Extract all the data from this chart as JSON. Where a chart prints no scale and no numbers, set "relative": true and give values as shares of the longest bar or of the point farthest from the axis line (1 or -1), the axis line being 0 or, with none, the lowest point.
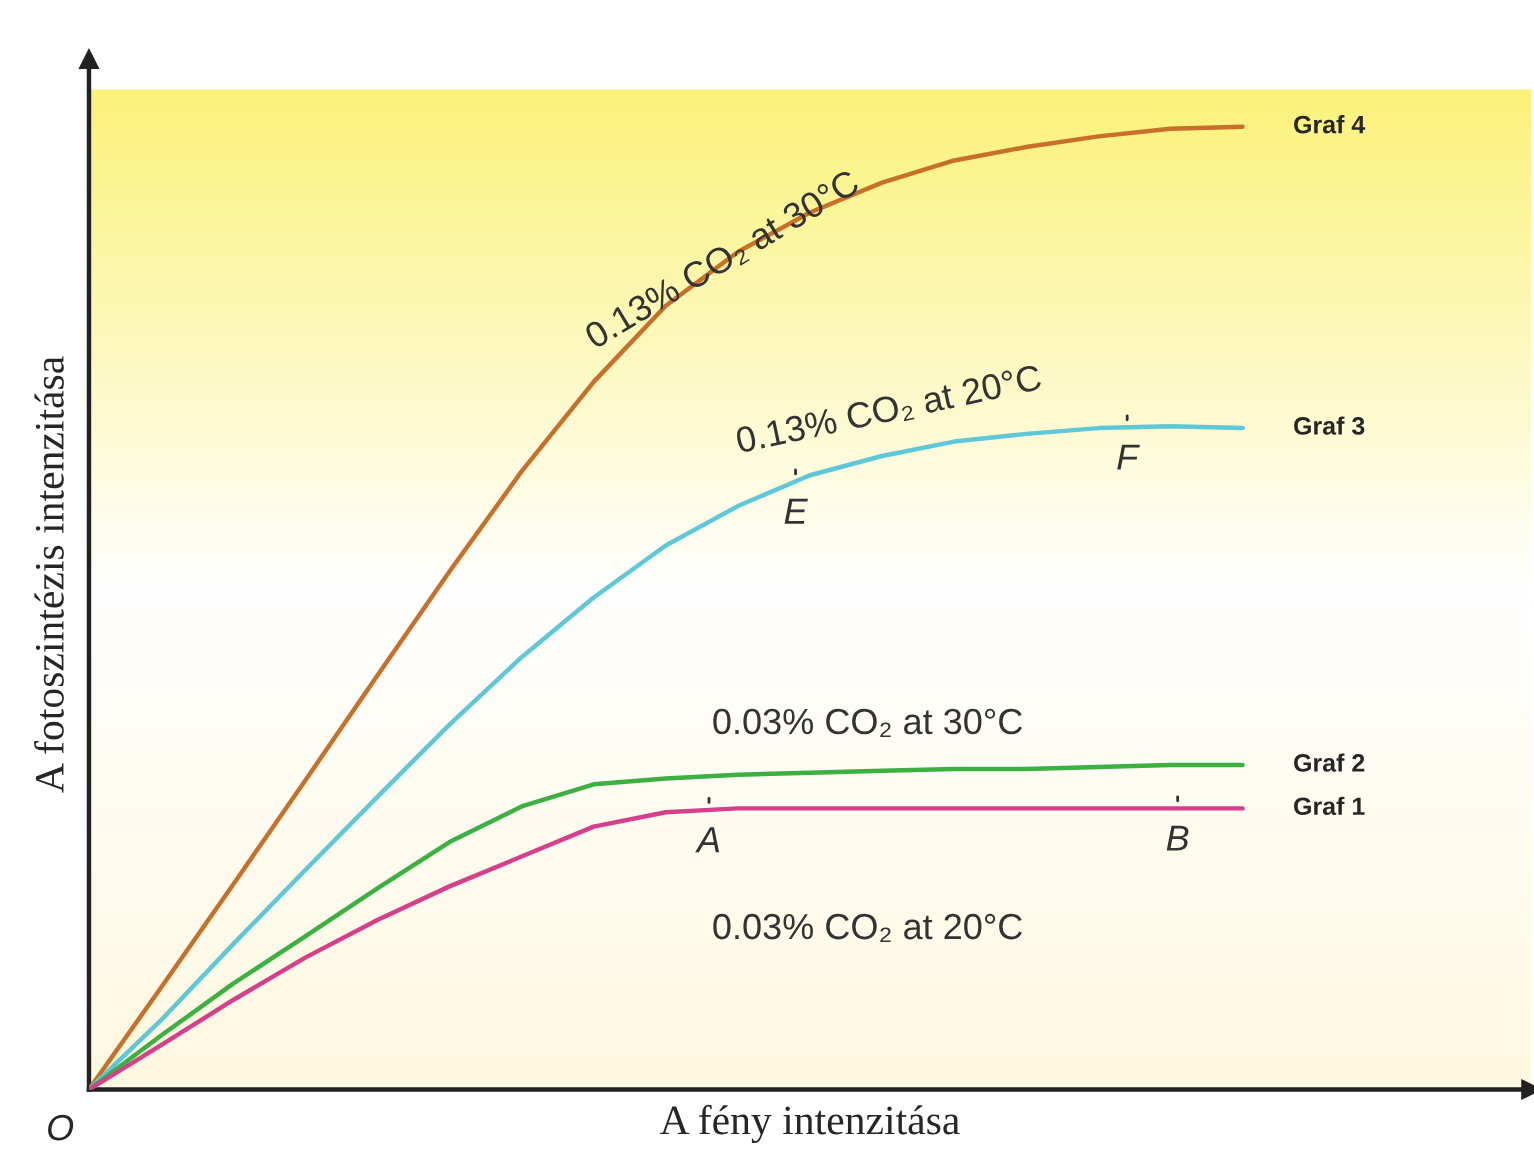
{
  "chart_data": {
    "type": "line",
    "relative": true,
    "xlabel": "A fény intenzitása",
    "ylabel": "A fotoszintézis intenzitása",
    "categories": [
      null,
      null,
      null,
      null,
      null,
      null,
      null,
      null,
      null,
      null,
      null,
      null,
      null,
      null,
      null,
      null,
      null,
      null,
      null,
      null,
      null
    ],
    "series": [
      {
        "name": "Graf 4",
        "color": "#c8702a",
        "values": [
          0,
          0.106,
          0.213,
          0.321,
          0.43,
          0.538,
          0.642,
          0.735,
          0.814,
          0.87,
          0.911,
          0.942,
          0.965,
          0.979,
          0.99,
          0.998,
          1.0,
          null,
          null,
          null,
          null
        ]
      },
      {
        "name": "Graf 3",
        "color": "#5ec8d8",
        "values": [
          0,
          0.072,
          0.151,
          0.228,
          0.304,
          0.379,
          0.449,
          0.511,
          0.565,
          0.606,
          0.638,
          0.658,
          0.673,
          0.681,
          0.687,
          0.689,
          0.687,
          null,
          null,
          null,
          null
        ]
      },
      {
        "name": "Graf 2",
        "color": "#3cb043",
        "values": [
          0,
          0.056,
          0.11,
          0.159,
          0.209,
          0.257,
          0.294,
          0.317,
          0.323,
          0.327,
          0.329,
          0.331,
          0.333,
          0.333,
          0.335,
          0.337,
          0.337,
          null,
          null,
          null,
          null
        ]
      },
      {
        "name": "Graf 1",
        "color": "#d6408a",
        "values": [
          0,
          0.046,
          0.093,
          0.137,
          0.176,
          0.211,
          0.242,
          0.273,
          0.288,
          0.292,
          0.292,
          0.292,
          0.292,
          0.292,
          0.292,
          0.292,
          0.292,
          null,
          null,
          null,
          null
        ]
      }
    ],
    "annotations": [
      "0.13% CO₂ at 30°C",
      "0.13% CO₂ at 20°C",
      "0.03% CO₂ at 30°C",
      "0.03% CO₂ at 20°C",
      "A",
      "B",
      "E",
      "F",
      "O"
    ]
  }
}
